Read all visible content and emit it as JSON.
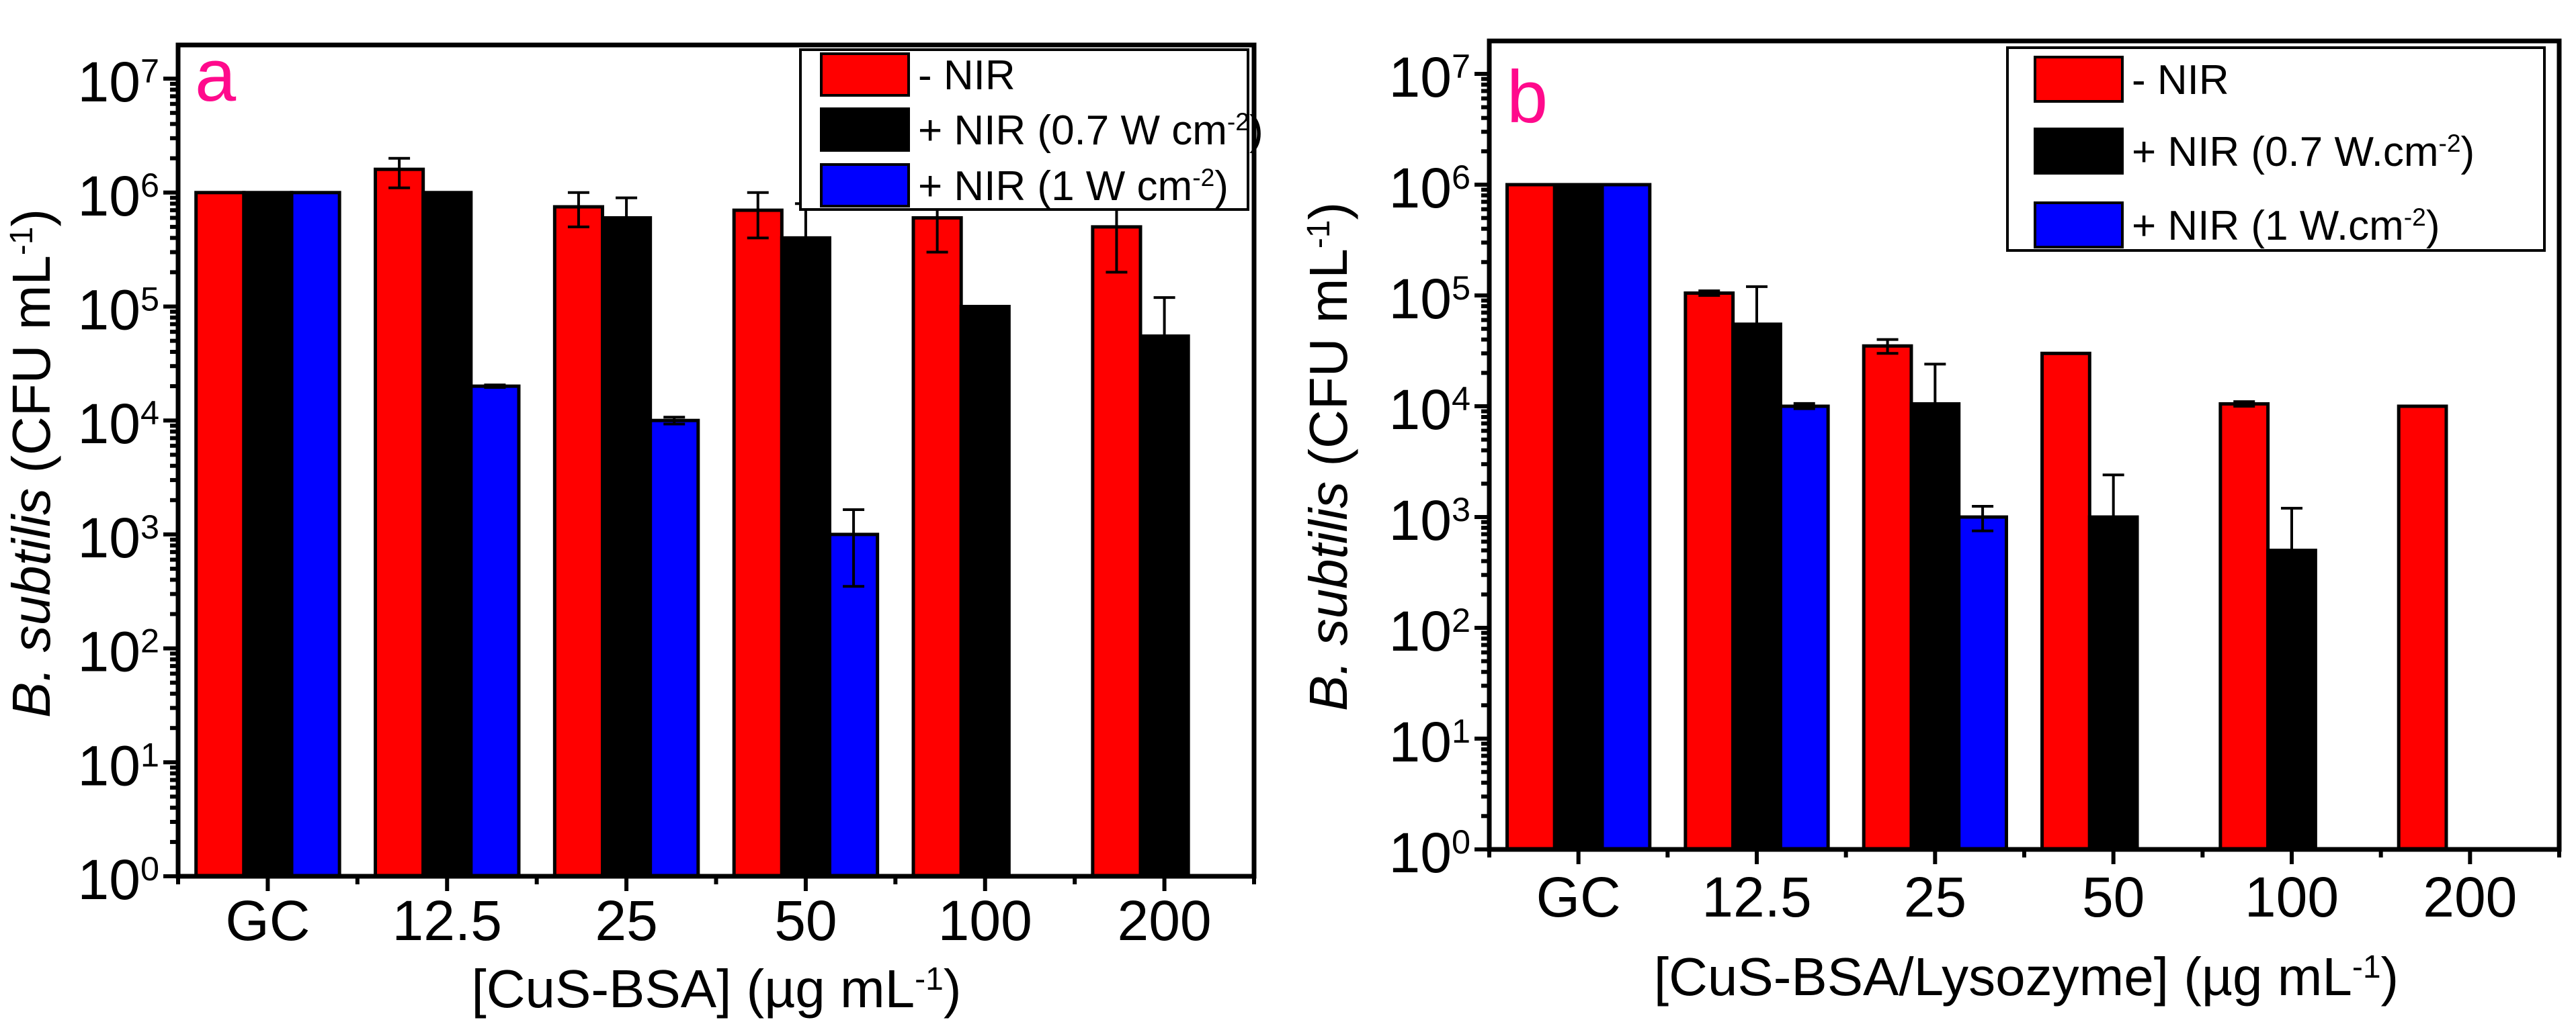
{
  "chart_data": [
    {
      "type": "bar",
      "panel_letter": "a",
      "letter_color": "#ff0a8c",
      "title": "",
      "yscale": "log",
      "ylim_exp": [
        0,
        7.3
      ],
      "ylabel": {
        "italic": "B. subtilis",
        "text": " (CFU mL",
        "sup": "-1",
        "tail": ")"
      },
      "xlabel": {
        "text": "[CuS-BSA] (µg mL",
        "sup": "-1",
        "tail": ")"
      },
      "y_ticks": [
        {
          "base": "10",
          "exp": "0"
        },
        {
          "base": "10",
          "exp": "1"
        },
        {
          "base": "10",
          "exp": "2"
        },
        {
          "base": "10",
          "exp": "3"
        },
        {
          "base": "10",
          "exp": "4"
        },
        {
          "base": "10",
          "exp": "5"
        },
        {
          "base": "10",
          "exp": "6"
        },
        {
          "base": "10",
          "exp": "7"
        }
      ],
      "categories": [
        "GC",
        "12.5",
        "25",
        "50",
        "100",
        "200"
      ],
      "legend_position": "top-right",
      "series": [
        {
          "name": "- NIR",
          "label": {
            "text": "- NIR",
            "sup": "",
            "tail": ""
          },
          "color": "#ff0000",
          "values": [
            1000000,
            1600000,
            750000,
            700000,
            600000,
            500000
          ],
          "error": [
            null,
            [
              1100000,
              2000000
            ],
            [
              500000,
              1000000
            ],
            [
              400000,
              1000000
            ],
            [
              300000,
              900000
            ],
            [
              200000,
              800000
            ]
          ]
        },
        {
          "name": "+ NIR (0.7 W cm-2)",
          "label": {
            "text": "+ NIR (0.7 W cm",
            "sup": "-2",
            "tail": ")"
          },
          "color": "#000000",
          "values": [
            1000000,
            1000000,
            600000,
            400000,
            100000,
            55000
          ],
          "error": [
            null,
            null,
            [
              600000,
              900000
            ],
            [
              400000,
              800000
            ],
            null,
            [
              55000,
              120000
            ]
          ]
        },
        {
          "name": "+ NIR (1 W cm-2)",
          "label": {
            "text": "+ NIR (1 W cm",
            "sup": "-2",
            "tail": ")"
          },
          "color": "#0000ff",
          "values": [
            1000000,
            20000,
            10000,
            1000,
            null,
            null
          ],
          "error": [
            null,
            [
              19500,
              20500
            ],
            [
              9300,
              10700
            ],
            [
              350,
              1650
            ],
            null,
            null
          ]
        }
      ]
    },
    {
      "type": "bar",
      "panel_letter": "b",
      "letter_color": "#ff0a8c",
      "title": "",
      "yscale": "log",
      "ylim_exp": [
        0,
        7.3
      ],
      "ylabel": {
        "italic": "B. subtilis",
        "text": " (CFU mL",
        "sup": "-1",
        "tail": ")"
      },
      "xlabel": {
        "text": "[CuS-BSA/Lysozyme] (µg mL",
        "sup": "-1",
        "tail": ")"
      },
      "y_ticks": [
        {
          "base": "10",
          "exp": "0"
        },
        {
          "base": "10",
          "exp": "1"
        },
        {
          "base": "10",
          "exp": "2"
        },
        {
          "base": "10",
          "exp": "3"
        },
        {
          "base": "10",
          "exp": "4"
        },
        {
          "base": "10",
          "exp": "5"
        },
        {
          "base": "10",
          "exp": "6"
        },
        {
          "base": "10",
          "exp": "7"
        }
      ],
      "categories": [
        "GC",
        "12.5",
        "25",
        "50",
        "100",
        "200"
      ],
      "legend_position": "top-right",
      "series": [
        {
          "name": "- NIR",
          "label": {
            "text": "- NIR",
            "sup": "",
            "tail": ""
          },
          "color": "#ff0000",
          "values": [
            1000000,
            105000,
            35000,
            30000,
            10500,
            10000
          ],
          "error": [
            null,
            [
              100000,
              110000
            ],
            [
              30000,
              40000
            ],
            null,
            [
              10000,
              11000
            ],
            null
          ]
        },
        {
          "name": "+ NIR (0.7 W.cm-2)",
          "label": {
            "text": "+ NIR (0.7 W.cm",
            "sup": "-2",
            "tail": ")"
          },
          "color": "#000000",
          "values": [
            1000000,
            55000,
            10500,
            1000,
            500,
            null
          ],
          "error": [
            null,
            [
              55000,
              120000
            ],
            [
              10500,
              24000
            ],
            [
              1000,
              2400
            ],
            [
              500,
              1200
            ],
            null
          ]
        },
        {
          "name": "+ NIR (1 W.cm-2)",
          "label": {
            "text": "+ NIR (1 W.cm",
            "sup": "-2",
            "tail": ")"
          },
          "color": "#0000ff",
          "values": [
            1000000,
            10000,
            1000,
            null,
            null,
            null
          ],
          "error": [
            null,
            [
              9500,
              10600
            ],
            [
              750,
              1250
            ],
            null,
            null,
            null
          ]
        }
      ]
    }
  ]
}
